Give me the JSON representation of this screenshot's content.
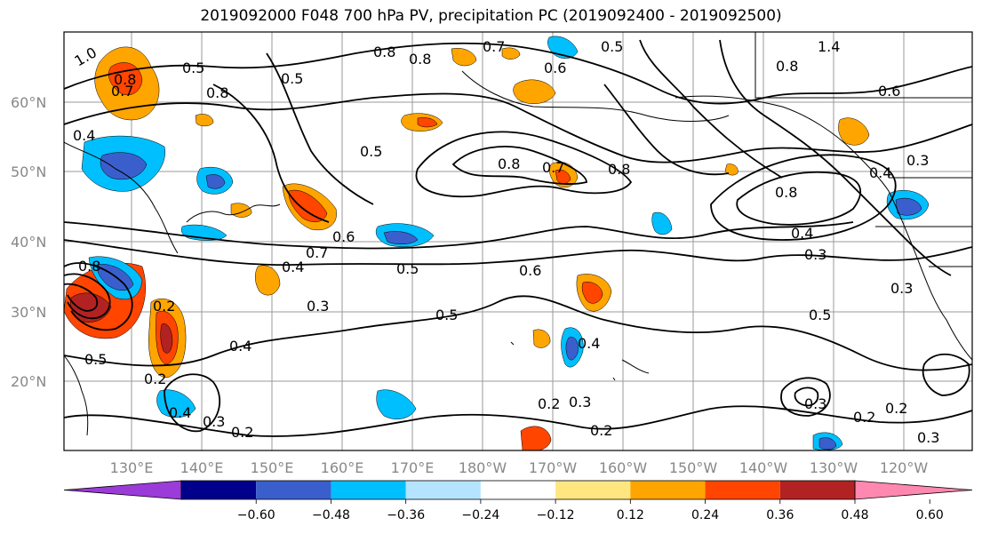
{
  "title": "2019092000 F048 700 hPa PV, precipitation PC (2019092400 - 2019092500)",
  "lat_labels": [
    "60°N",
    "50°N",
    "40°N",
    "30°N",
    "20°N"
  ],
  "lon_labels": [
    "130°E",
    "140°E",
    "150°E",
    "160°E",
    "170°E",
    "180°W",
    "170°W",
    "160°W",
    "150°W",
    "140°W",
    "130°W",
    "120°W"
  ],
  "colorbar": {
    "colors": [
      "#9b3bd8",
      "#00008b",
      "#3a5fcd",
      "#00bfff",
      "#b4e4ff",
      "#ffffff",
      "#ffe680",
      "#ffa500",
      "#ff4500",
      "#b22222",
      "#ff88b0"
    ],
    "tick_labels": [
      "−0.60",
      "−0.48",
      "−0.36",
      "−0.24",
      "−0.12",
      "0.12",
      "0.24",
      "0.36",
      "0.48",
      "0.60"
    ]
  },
  "contour_labels": [
    {
      "text": "1.0"
    },
    {
      "text": "0.8"
    },
    {
      "text": "0.7"
    },
    {
      "text": "0.5"
    },
    {
      "text": "0.8"
    },
    {
      "text": "0.8"
    },
    {
      "text": "0.8"
    },
    {
      "text": "0.7"
    },
    {
      "text": "0.5"
    },
    {
      "text": "0.6"
    },
    {
      "text": "0.5"
    },
    {
      "text": "1.4"
    },
    {
      "text": "0.8"
    },
    {
      "text": "0.6"
    },
    {
      "text": "0.4"
    },
    {
      "text": "0.5"
    },
    {
      "text": "0.8"
    },
    {
      "text": "0.7"
    },
    {
      "text": "0.8"
    },
    {
      "text": "0.8"
    },
    {
      "text": "0.3"
    },
    {
      "text": "0.4"
    },
    {
      "text": "0.7"
    },
    {
      "text": "0.6"
    },
    {
      "text": "0.4"
    },
    {
      "text": "0.3"
    },
    {
      "text": "0.4"
    },
    {
      "text": "0.8"
    },
    {
      "text": "0.5"
    },
    {
      "text": "0.6"
    },
    {
      "text": "0.3"
    },
    {
      "text": "0.5"
    },
    {
      "text": "0.3"
    },
    {
      "text": "0.2"
    },
    {
      "text": "0.4"
    },
    {
      "text": "0.5"
    },
    {
      "text": "0.4"
    },
    {
      "text": "0.4"
    },
    {
      "text": "0.3"
    },
    {
      "text": "0.2"
    },
    {
      "text": "0.2"
    },
    {
      "text": "0.3"
    },
    {
      "text": "0.2"
    },
    {
      "text": "0.3"
    },
    {
      "text": "0.2"
    },
    {
      "text": "0.2"
    },
    {
      "text": "0.3"
    },
    {
      "text": "0.5"
    },
    {
      "text": "0.2"
    }
  ]
}
